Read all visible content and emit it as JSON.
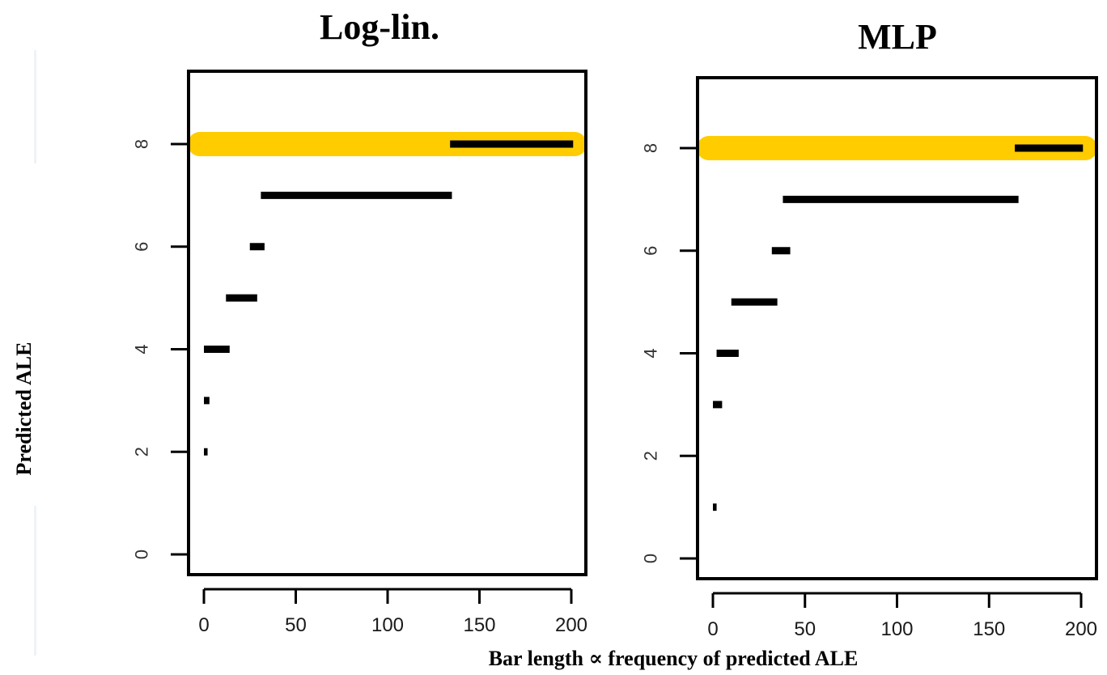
{
  "figure": {
    "ylabel": "Predicted ALE",
    "xlabel": "Bar length ∝ frequency of predicted ALE"
  },
  "colors": {
    "highlight": "#ffcc00",
    "bar": "#000000",
    "frame": "#000000"
  },
  "chart_data": [
    {
      "type": "bar",
      "orientation": "horizontal",
      "title": "Log-lin.",
      "xlim": [
        -8,
        208
      ],
      "ylim": [
        -1,
        10
      ],
      "xticks": [
        0,
        50,
        100,
        150,
        200
      ],
      "xtick_labels": [
        "0",
        "50",
        "100",
        "150",
        "200"
      ],
      "yticks": [
        0,
        2,
        4,
        6,
        8
      ],
      "ytick_labels": [
        "0",
        "2",
        "4",
        "6",
        "8"
      ],
      "highlight_category": 8,
      "categories": [
        2,
        3,
        4,
        5,
        6,
        7,
        8
      ],
      "values": [
        2,
        3,
        14,
        17,
        8,
        104,
        67
      ],
      "starts": [
        0,
        0,
        0,
        12,
        25,
        31,
        134
      ]
    },
    {
      "type": "bar",
      "orientation": "horizontal",
      "title": "MLP",
      "xlim": [
        -8,
        208
      ],
      "ylim": [
        -1,
        10
      ],
      "xticks": [
        0,
        50,
        100,
        150,
        200
      ],
      "xtick_labels": [
        "0",
        "50",
        "100",
        "150",
        "200"
      ],
      "yticks": [
        0,
        2,
        4,
        6,
        8
      ],
      "ytick_labels": [
        "0",
        "2",
        "4",
        "6",
        "8"
      ],
      "highlight_category": 8,
      "categories": [
        1,
        3,
        4,
        5,
        6,
        7,
        8
      ],
      "values": [
        2,
        5,
        12,
        25,
        10,
        128,
        37
      ],
      "starts": [
        0,
        0,
        2,
        10,
        32,
        38,
        164
      ]
    }
  ]
}
